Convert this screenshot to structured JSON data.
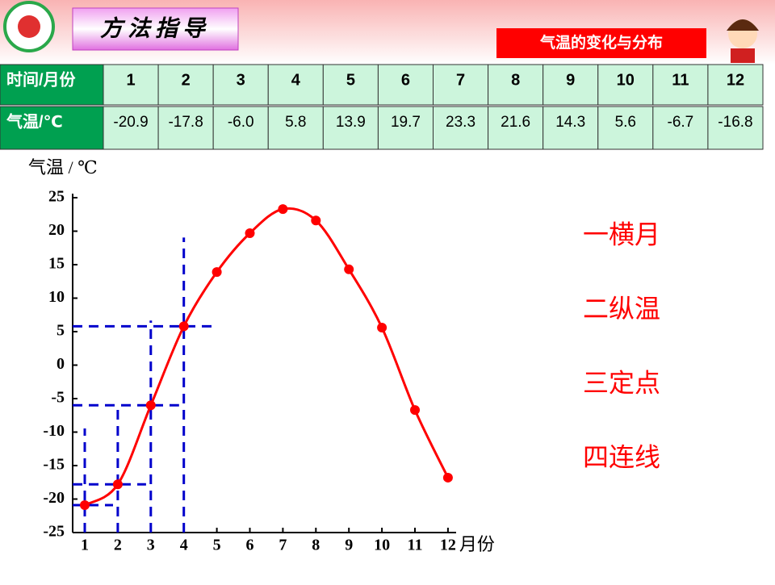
{
  "header": {
    "title": "方法指导",
    "badge": "气温的变化与分布"
  },
  "table": {
    "rows": [
      [
        "时间/月份",
        "1",
        "2",
        "3",
        "4",
        "5",
        "6",
        "7",
        "8",
        "9",
        "10",
        "11",
        "12"
      ],
      [
        "气温/℃",
        "-20.9",
        "-17.8",
        "-6.0",
        "5.8",
        "13.9",
        "19.7",
        "23.3",
        "21.6",
        "14.3",
        "5.6",
        "-6.7",
        "-16.8"
      ]
    ]
  },
  "steps": [
    "一横月",
    "二纵温",
    "三定点",
    "四连线"
  ],
  "chart_data": {
    "type": "line",
    "y_label": "气温 / ℃",
    "x_label": "月份",
    "categories": [
      "1",
      "2",
      "3",
      "4",
      "5",
      "6",
      "7",
      "8",
      "9",
      "10",
      "11",
      "12"
    ],
    "series": [
      {
        "color": "#ff0000",
        "values": [
          -20.9,
          -17.8,
          -6.0,
          5.8,
          13.9,
          19.7,
          23.3,
          21.6,
          14.3,
          5.6,
          -6.7,
          -16.8
        ]
      }
    ],
    "ylim": [
      -25,
      25
    ],
    "yticks": [
      -25,
      -20,
      -15,
      -10,
      -5,
      0,
      5,
      10,
      15,
      20,
      25
    ],
    "guide_color": "#0000cc"
  }
}
